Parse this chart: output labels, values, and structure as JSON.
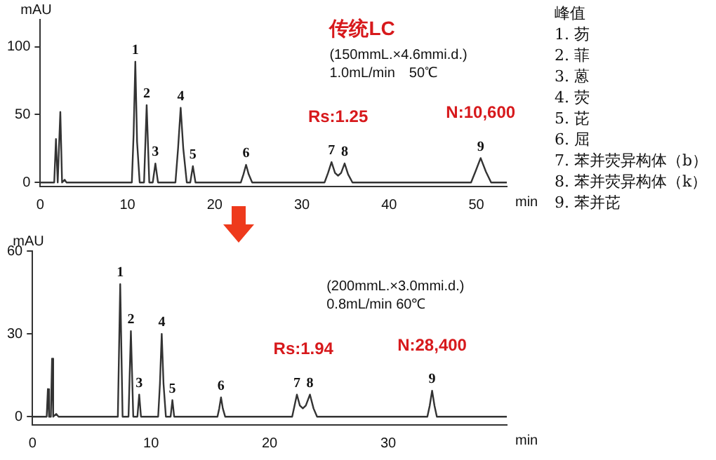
{
  "chart_data": [
    {
      "type": "line",
      "title": "传统LC",
      "xlabel": "min",
      "ylabel": "mAU",
      "xlim": [
        0,
        53.5
      ],
      "xticks": [
        0,
        10,
        20,
        30,
        40,
        50
      ],
      "ylim": [
        -3,
        120
      ],
      "yticks": [
        0,
        50,
        100
      ],
      "marker": "none",
      "legend": false,
      "series": [
        {
          "color": "#333333",
          "x": [
            0,
            1.6,
            1.8,
            2.0,
            2.1,
            2.3,
            2.5,
            2.8,
            3.0,
            10.5,
            10.7,
            10.9,
            11.1,
            11.4,
            11.9,
            12.2,
            12.5,
            12.9,
            13.2,
            13.5,
            15.5,
            15.8,
            16.1,
            16.4,
            16.8,
            17.2,
            17.5,
            17.8,
            23.0,
            23.3,
            23.6,
            23.9,
            24.3,
            32.6,
            33.0,
            33.4,
            33.8,
            34.15,
            34.5,
            34.9,
            35.3,
            35.8,
            49.4,
            49.9,
            50.5,
            51.1,
            51.7,
            53.5
          ],
          "values": [
            0,
            0,
            32,
            0,
            0,
            52,
            0,
            2,
            0,
            0,
            35,
            89,
            30,
            0,
            0,
            57,
            0,
            0,
            14,
            0,
            0,
            25,
            55,
            25,
            0,
            0,
            12,
            0,
            0,
            6,
            13,
            6,
            0,
            0,
            7,
            15,
            7,
            5,
            7,
            14,
            6,
            0,
            0,
            8,
            18,
            8,
            0,
            0
          ]
        }
      ],
      "annotations": [
        {
          "text": "1",
          "x": 10.9,
          "y": 89
        },
        {
          "text": "2",
          "x": 12.2,
          "y": 57
        },
        {
          "text": "3",
          "x": 13.2,
          "y": 14
        },
        {
          "text": "4",
          "x": 16.1,
          "y": 55
        },
        {
          "text": "5",
          "x": 17.5,
          "y": 12
        },
        {
          "text": "6",
          "x": 23.6,
          "y": 13
        },
        {
          "text": "7",
          "x": 33.4,
          "y": 15
        },
        {
          "text": "8",
          "x": 34.9,
          "y": 14
        },
        {
          "text": "9",
          "x": 50.5,
          "y": 18
        },
        "(150mmL.×4.6mmi.d.)",
        "1.0mL/min　50℃",
        {
          "text": "Rs:1.25",
          "x": 34.15,
          "y": 15
        },
        {
          "text": "N:10,600",
          "x": 50.5,
          "y": 18
        }
      ]
    },
    {
      "type": "line",
      "xlabel": "min",
      "ylabel": "mAU",
      "xlim": [
        0,
        40
      ],
      "xticks": [
        0,
        10,
        20,
        30
      ],
      "ylim": [
        -3,
        60
      ],
      "yticks": [
        0,
        30,
        60
      ],
      "marker": "none",
      "legend": false,
      "series": [
        {
          "color": "#333333",
          "x": [
            0,
            1.2,
            1.3,
            1.4,
            1.55,
            1.65,
            1.75,
            2.0,
            2.2,
            7.2,
            7.4,
            7.6,
            8.1,
            8.3,
            8.5,
            8.85,
            9.0,
            9.15,
            10.6,
            10.75,
            10.9,
            11.05,
            11.25,
            11.65,
            11.8,
            11.95,
            15.6,
            15.75,
            15.9,
            16.05,
            16.25,
            21.9,
            22.1,
            22.3,
            22.55,
            22.8,
            23.05,
            23.4,
            23.7,
            24.0,
            33.3,
            33.5,
            33.7,
            33.9,
            34.1,
            40
          ],
          "values": [
            0,
            0,
            10,
            0,
            0,
            21,
            0,
            1,
            0,
            0,
            48,
            0,
            0,
            31,
            0,
            0,
            8,
            0,
            0,
            12,
            30,
            12,
            0,
            0,
            6,
            0,
            0,
            3,
            7,
            3,
            0,
            0,
            4,
            8,
            4,
            3,
            4,
            8,
            3,
            0,
            0,
            4,
            9.4,
            4,
            0,
            0
          ]
        }
      ],
      "annotations": [
        {
          "text": "1",
          "x": 7.4,
          "y": 48
        },
        {
          "text": "2",
          "x": 8.3,
          "y": 31
        },
        {
          "text": "3",
          "x": 9.0,
          "y": 8
        },
        {
          "text": "4",
          "x": 10.9,
          "y": 30
        },
        {
          "text": "5",
          "x": 11.8,
          "y": 6
        },
        {
          "text": "6",
          "x": 15.9,
          "y": 7
        },
        {
          "text": "7",
          "x": 22.3,
          "y": 8
        },
        {
          "text": "8",
          "x": 23.4,
          "y": 8
        },
        {
          "text": "9",
          "x": 33.7,
          "y": 9.4
        },
        "(200mmL.×3.0mmi.d.)",
        "0.8mL/min 60℃",
        {
          "text": "Rs:1.94",
          "x": 22.85,
          "y": 8
        },
        {
          "text": "N:28,400",
          "x": 33.7,
          "y": 9.4
        }
      ]
    },
    {
      "type": "other",
      "title": "峰值",
      "annotations": [
        "1. 芴",
        "2. 菲",
        "3. 蒽",
        "4. 荧",
        "5. 芘",
        "6. 屈",
        "7. 苯并荧异构体（b）",
        "8. 苯并荧异构体（k）",
        "9. 苯并芘"
      ]
    }
  ]
}
